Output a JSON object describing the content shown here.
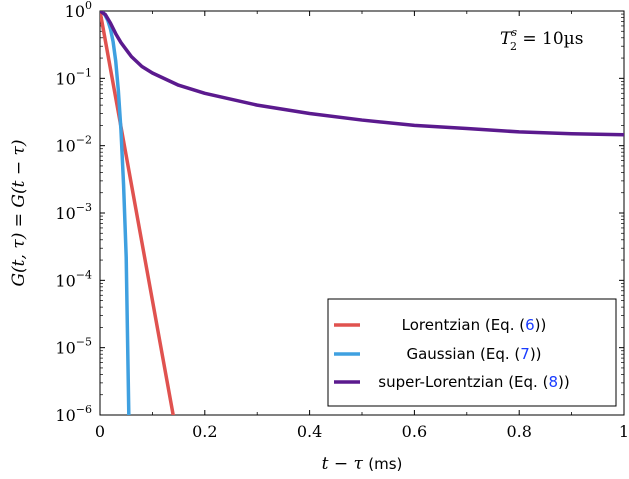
{
  "chart_data": {
    "type": "line",
    "xlabel_math": "t − τ",
    "xlabel_unit": "(ms)",
    "ylabel": "G(t, τ) = G(t − τ)",
    "xlim": [
      0,
      1
    ],
    "ylim": [
      1e-06,
      1
    ],
    "y_scale": "log",
    "grid": false,
    "x_ticks": [
      "0",
      "0.2",
      "0.4",
      "0.6",
      "0.8",
      "1"
    ],
    "y_ticks": [
      {
        "base": "10",
        "exp": "−6",
        "value": 1e-06
      },
      {
        "base": "10",
        "exp": "−5",
        "value": 1e-05
      },
      {
        "base": "10",
        "exp": "−4",
        "value": 0.0001
      },
      {
        "base": "10",
        "exp": "−3",
        "value": 0.001
      },
      {
        "base": "10",
        "exp": "−2",
        "value": 0.01
      },
      {
        "base": "10",
        "exp": "−1",
        "value": 0.1
      },
      {
        "base": "10",
        "exp": "0",
        "value": 1
      }
    ],
    "annotation": {
      "lhs": "T",
      "sup": "s",
      "sub": "2",
      "rhs": " = 10µs"
    },
    "legend_position": "bottom-right",
    "series": [
      {
        "name": "Lorentzian (Eq. (6))",
        "name_main": "Lorentzian (Eq. (",
        "ref": "6",
        "name_tail": "))",
        "color": "#e0524f",
        "x": [
          0,
          0.02,
          0.04,
          0.06,
          0.08,
          0.1,
          0.12,
          0.14
        ],
        "y": [
          1,
          0.138,
          0.0191,
          0.00264,
          0.000365,
          5.05e-05,
          6.98e-06,
          9.66e-07
        ]
      },
      {
        "name": "Gaussian (Eq. (7))",
        "name_main": "Gaussian (Eq. (",
        "ref": "7",
        "name_tail": "))",
        "color": "#3fa0e0",
        "x": [
          0,
          0.005,
          0.01,
          0.015,
          0.02,
          0.025,
          0.03,
          0.035,
          0.04,
          0.045,
          0.05,
          0.055
        ],
        "y": [
          1,
          0.96,
          0.86,
          0.72,
          0.54,
          0.35,
          0.18,
          0.066,
          0.017,
          0.0026,
          0.00022,
          1e-06
        ]
      },
      {
        "name": "super-Lorentzian (Eq. (8))",
        "name_main": "super-Lorentzian (Eq. (",
        "ref": "8",
        "name_tail": "))",
        "color": "#5b1a8e",
        "x": [
          0,
          0.01,
          0.02,
          0.03,
          0.04,
          0.06,
          0.08,
          0.1,
          0.15,
          0.2,
          0.3,
          0.4,
          0.5,
          0.6,
          0.7,
          0.8,
          0.9,
          1.0
        ],
        "y": [
          1,
          0.89,
          0.66,
          0.46,
          0.34,
          0.21,
          0.15,
          0.12,
          0.079,
          0.06,
          0.04,
          0.03,
          0.024,
          0.02,
          0.018,
          0.016,
          0.015,
          0.0145
        ]
      }
    ]
  }
}
